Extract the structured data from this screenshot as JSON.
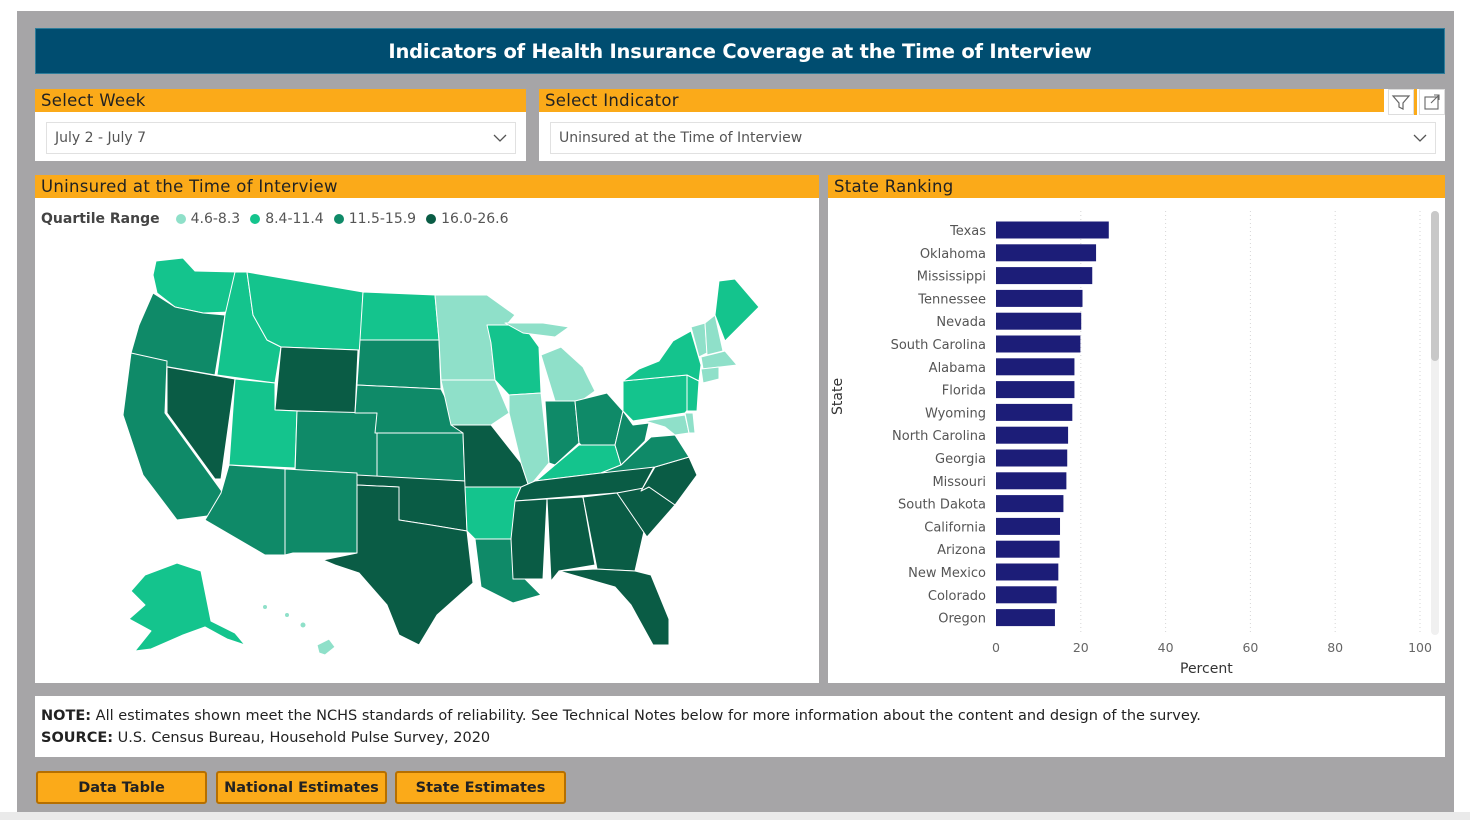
{
  "header": {
    "title": "Indicators of Health Insurance Coverage at the Time of Interview"
  },
  "week": {
    "label": "Select Week",
    "value": "July 2 - July 7"
  },
  "indicator": {
    "label": "Select Indicator",
    "value": "Uninsured at the Time of Interview"
  },
  "map": {
    "title": "Uninsured at the Time of Interview",
    "legend_title": "Quartile Range",
    "legend": [
      {
        "label": "4.6-8.3",
        "color": "#8fe0c9"
      },
      {
        "label": "8.4-11.4",
        "color": "#14c48d"
      },
      {
        "label": "11.5-15.9",
        "color": "#0f8a68"
      },
      {
        "label": "16.0-26.6",
        "color": "#0a5c45"
      }
    ]
  },
  "ranking": {
    "title": "State Ranking",
    "ylabel": "State",
    "xlabel": "Percent"
  },
  "chart_data": {
    "type": "bar",
    "orientation": "horizontal",
    "categories": [
      "Texas",
      "Oklahoma",
      "Mississippi",
      "Tennessee",
      "Nevada",
      "South Carolina",
      "Alabama",
      "Florida",
      "Wyoming",
      "North Carolina",
      "Georgia",
      "Missouri",
      "South Dakota",
      "California",
      "Arizona",
      "New Mexico",
      "Colorado",
      "Oregon"
    ],
    "values": [
      26.6,
      23.6,
      22.7,
      20.4,
      20.1,
      19.9,
      18.5,
      18.5,
      18.0,
      17.0,
      16.8,
      16.6,
      15.9,
      15.1,
      15.0,
      14.7,
      14.3,
      13.9
    ],
    "xlim": [
      0,
      100
    ],
    "xticks": [
      "0",
      "20",
      "40",
      "60",
      "80",
      "100"
    ],
    "bar_color": "#1c1d78",
    "ylabel": "State",
    "xlabel": "Percent",
    "grid": true
  },
  "footer": {
    "note_label": "NOTE:",
    "note_text": "All estimates shown meet the NCHS standards of reliability. See Technical Notes below for more information about the content and design of the survey.",
    "source_label": "SOURCE:",
    "source_text": "U.S. Census Bureau, Household Pulse Survey, 2020"
  },
  "buttons": {
    "data_table": "Data Table",
    "national": "National Estimates",
    "state": "State Estimates"
  }
}
